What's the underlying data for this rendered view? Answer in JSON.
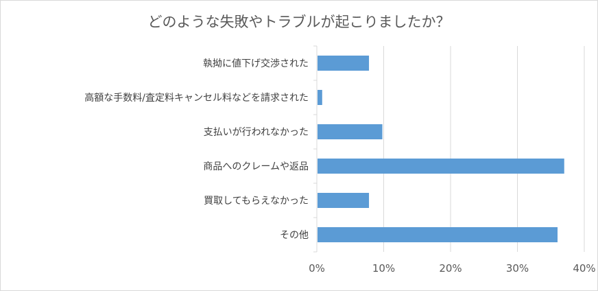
{
  "chart_data": {
    "type": "bar",
    "orientation": "horizontal",
    "title": "どのような失敗やトラブルが起こりましたか？",
    "categories": [
      "執拗に値下げ交渉された",
      "高額な手数料/査定料キャンセル料などを請求された",
      "支払いが行われなかった",
      "商品へのクレームや返品",
      "買取してもらえなかった",
      "その他"
    ],
    "values": [
      7.8,
      0.8,
      9.8,
      37.0,
      7.8,
      36.0
    ],
    "xlim": [
      0,
      40
    ],
    "xticks": [
      0,
      10,
      20,
      30,
      40
    ],
    "xtick_labels": [
      "0%",
      "10%",
      "20%",
      "30%",
      "40%"
    ],
    "grid": true,
    "bar_color": "#5b9bd5",
    "grid_color": "#d9d9d9"
  }
}
